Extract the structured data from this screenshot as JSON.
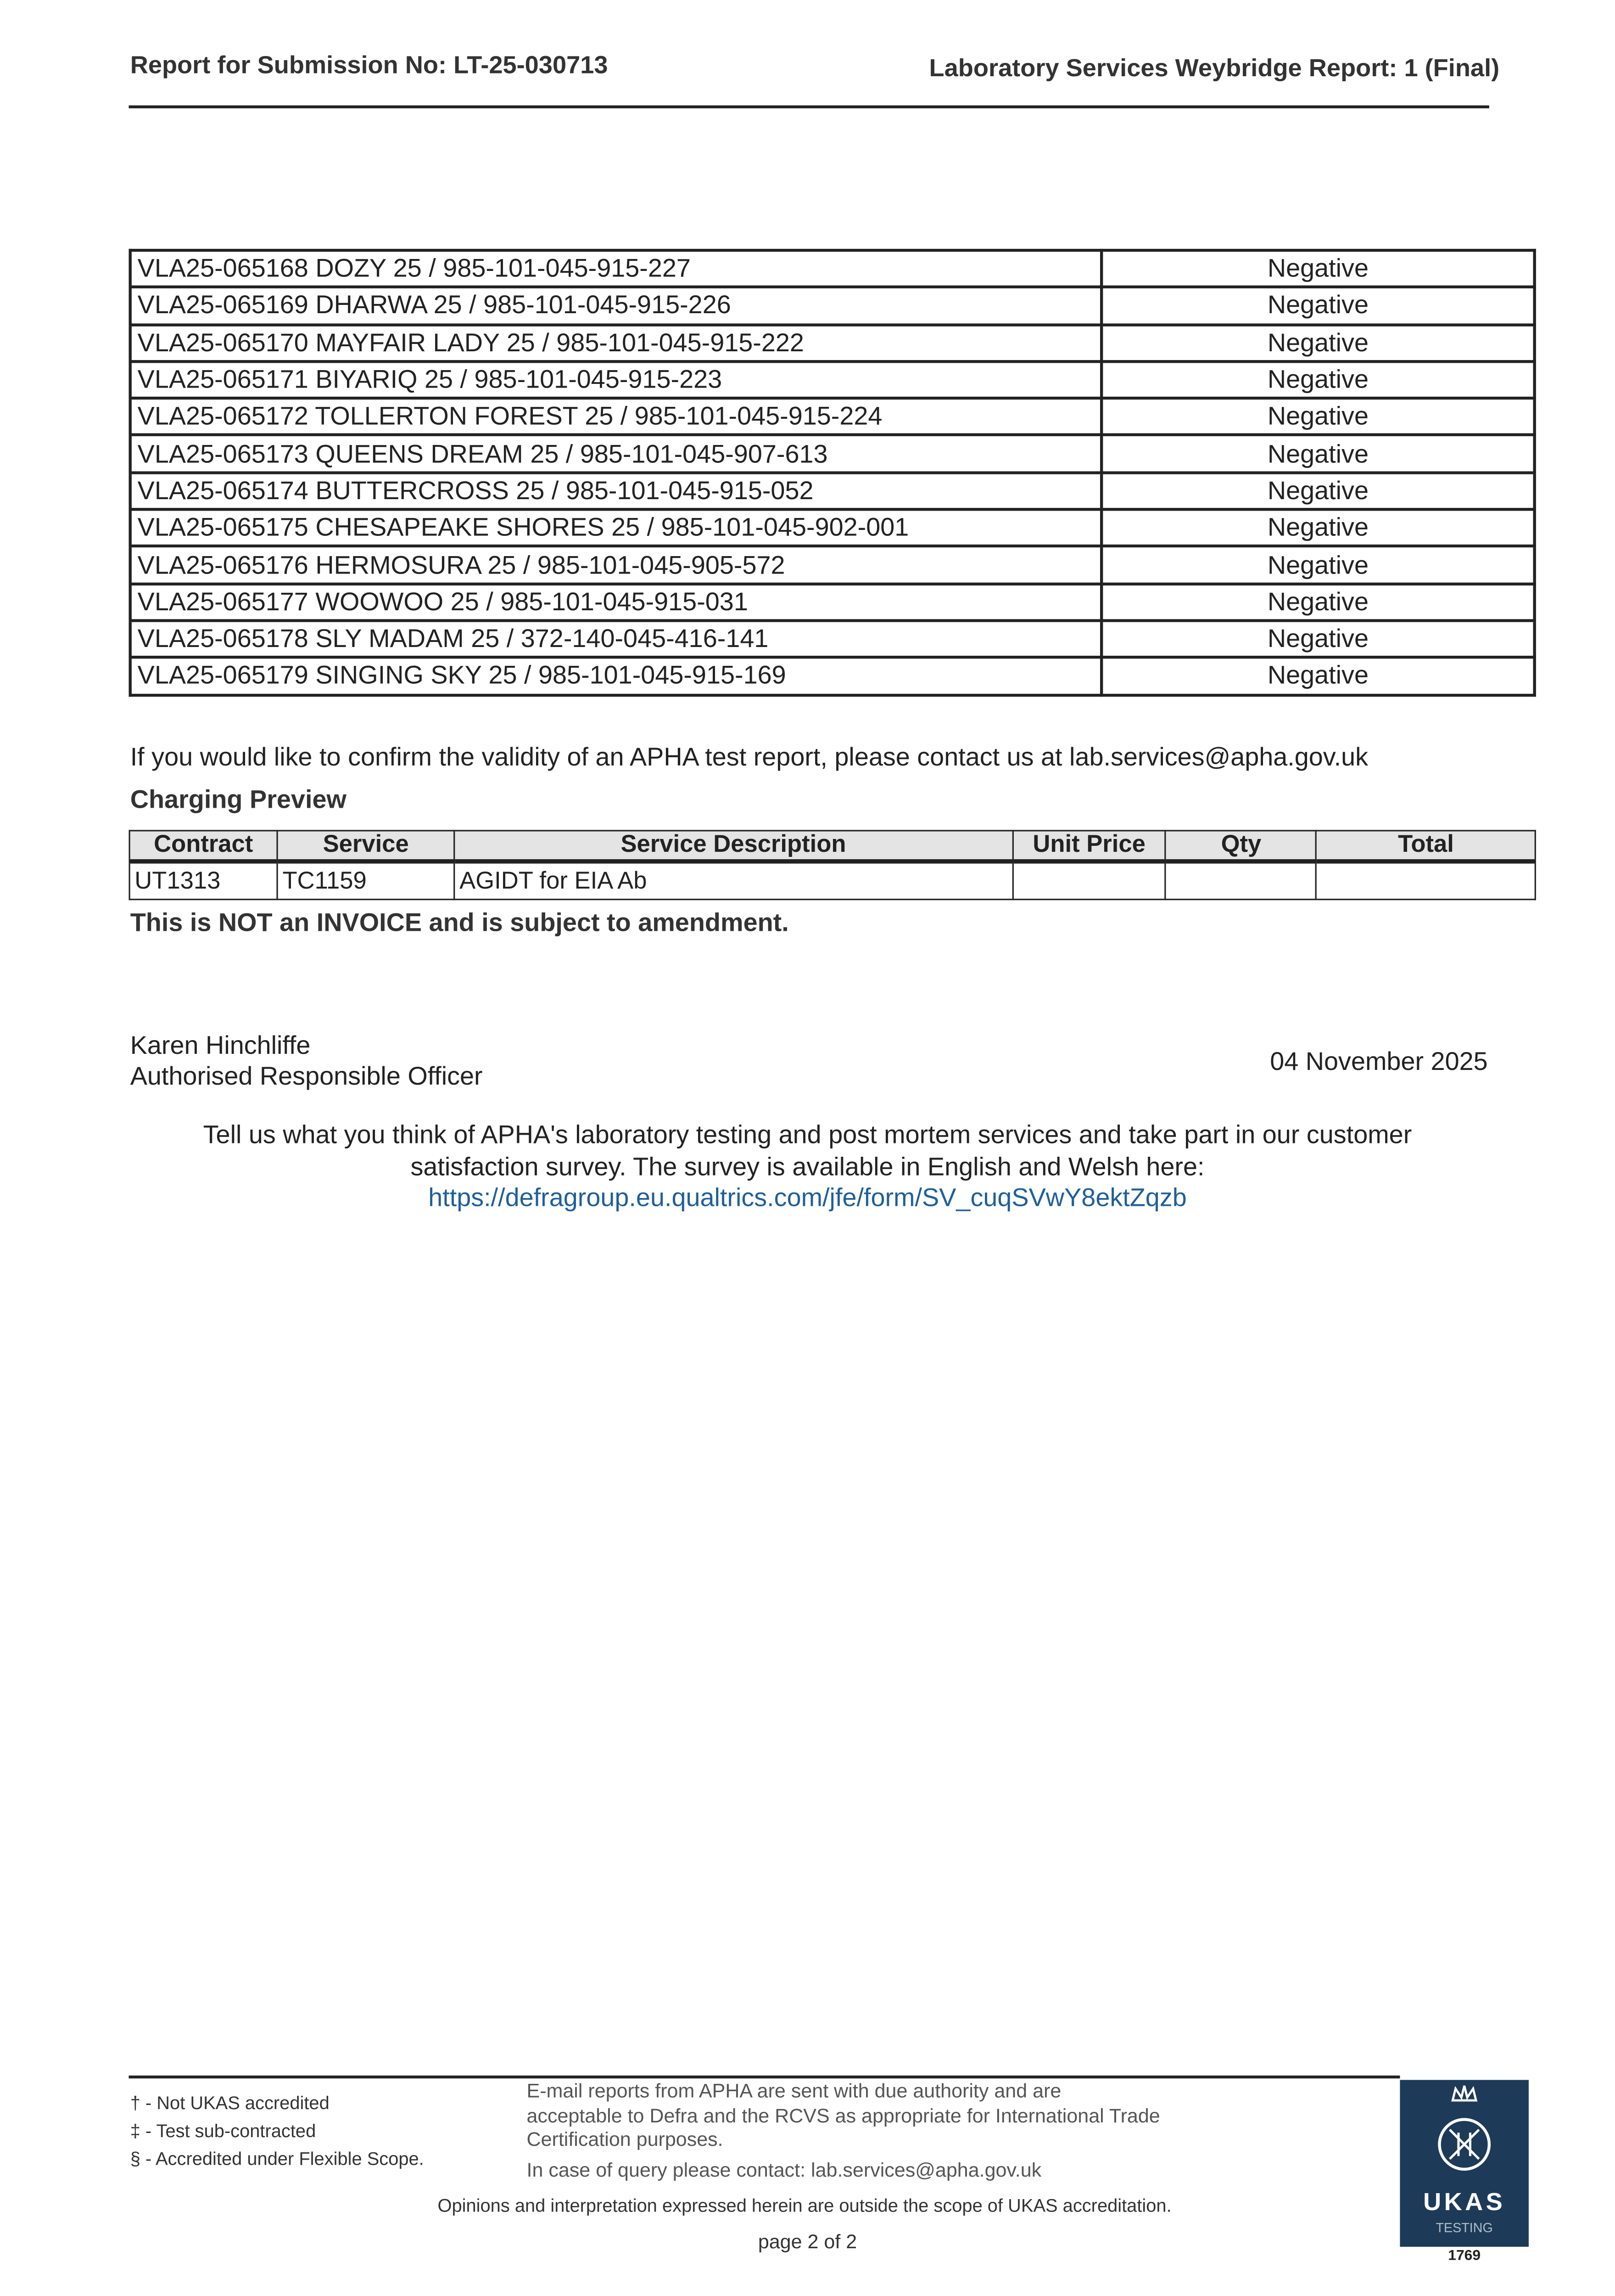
{
  "header": {
    "left": "Report for Submission No: LT-25-030713",
    "right": "Laboratory Services Weybridge Report: 1 (Final)"
  },
  "results": [
    {
      "sample": "VLA25-065168 DOZY 25 / 985-101-045-915-227",
      "result": "Negative"
    },
    {
      "sample": "VLA25-065169 DHARWA 25 / 985-101-045-915-226",
      "result": "Negative"
    },
    {
      "sample": "VLA25-065170 MAYFAIR LADY 25 / 985-101-045-915-222",
      "result": "Negative"
    },
    {
      "sample": "VLA25-065171 BIYARIQ 25 / 985-101-045-915-223",
      "result": "Negative"
    },
    {
      "sample": "VLA25-065172 TOLLERTON FOREST 25 / 985-101-045-915-224",
      "result": "Negative"
    },
    {
      "sample": "VLA25-065173 QUEENS DREAM 25 / 985-101-045-907-613",
      "result": "Negative"
    },
    {
      "sample": "VLA25-065174 BUTTERCROSS 25 / 985-101-045-915-052",
      "result": "Negative"
    },
    {
      "sample": "VLA25-065175 CHESAPEAKE SHORES 25 / 985-101-045-902-001",
      "result": "Negative"
    },
    {
      "sample": "VLA25-065176 HERMOSURA 25 / 985-101-045-905-572",
      "result": "Negative"
    },
    {
      "sample": "VLA25-065177 WOOWOO 25 / 985-101-045-915-031",
      "result": "Negative"
    },
    {
      "sample": "VLA25-065178 SLY MADAM 25 / 372-140-045-416-141",
      "result": "Negative"
    },
    {
      "sample": "VLA25-065179 SINGING SKY 25 / 985-101-045-915-169",
      "result": "Negative"
    }
  ],
  "validity_note": "If you would like to confirm the validity of an APHA test report, please contact us at lab.services@apha.gov.uk",
  "charging": {
    "title": "Charging Preview",
    "headers": [
      "Contract",
      "Service",
      "Service Description",
      "Unit Price",
      "Qty",
      "Total"
    ],
    "rows": [
      [
        "UT1313",
        "TC1159",
        "AGIDT for EIA Ab",
        "",
        "",
        ""
      ]
    ],
    "note": "This is NOT an INVOICE and is subject to amendment."
  },
  "signature": {
    "name": "Karen Hinchliffe",
    "role": "Authorised Responsible Officer",
    "date": "04 November 2025"
  },
  "survey": {
    "line1": "Tell us what you think of APHA's laboratory testing and post mortem services and take part in our customer",
    "line2": "satisfaction survey. The survey is available in English and Welsh here:",
    "link": "https://defragroup.eu.qualtrics.com/jfe/form/SV_cuqSVwY8ektZqzb"
  },
  "footer": {
    "notes": [
      "† - Not UKAS accredited",
      "‡ - Test sub-contracted",
      "§ - Accredited under Flexible Scope."
    ],
    "email_lines": [
      "E-mail reports from APHA are sent with due authority and are",
      "acceptable to Defra and the RCVS as appropriate for International Trade",
      "Certification purposes."
    ],
    "query": "In case of query please contact: lab.services@apha.gov.uk",
    "opinions": "Opinions and interpretation expressed herein are outside the scope of UKAS accreditation.",
    "page": "page 2 of 2"
  },
  "ukas": {
    "name": "UKAS",
    "sub": "TESTING",
    "number": "1769",
    "color": "#1d3b58"
  }
}
